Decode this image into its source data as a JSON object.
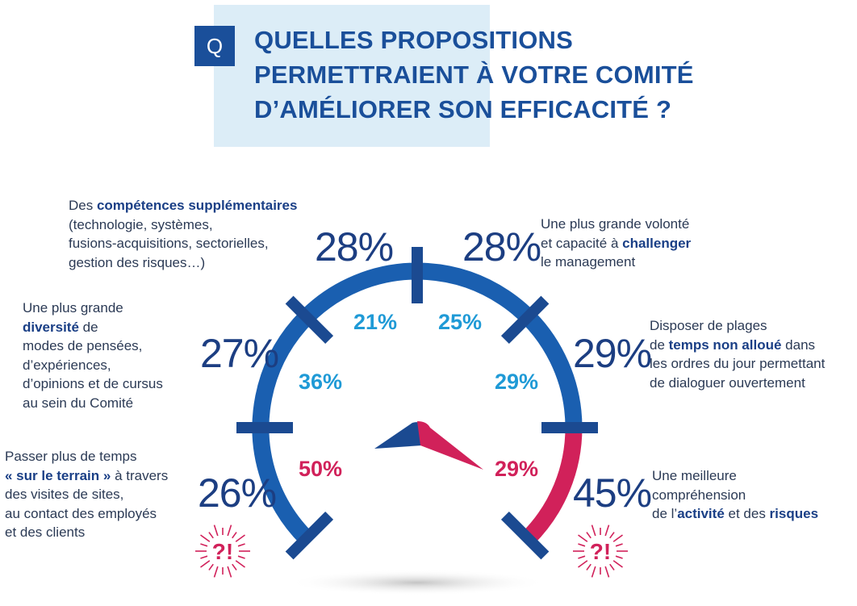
{
  "header": {
    "badge": "Q",
    "title_lines": [
      "QUELLES PROPOSITIONS",
      "PERMETTRAIENT À VOTRE COMITÉ",
      "D’AMÉLIORER SON EFFICACITÉ ?"
    ]
  },
  "chart_data": {
    "type": "gauge",
    "title": "QUELLES PROPOSITIONS PERMETTRAIENT À VOTRE COMITÉ D’AMÉLIORER SON EFFICACITÉ ?",
    "needle_value_pct": 29,
    "proposals": [
      {
        "id": "terrain",
        "outer_value": "26%",
        "inner_value": "50%",
        "inner_color": "red",
        "highlight": true,
        "label_parts": [
          {
            "t": "Passer plus de temps",
            "b": false,
            "br": true
          },
          {
            "t": "« sur le terrain »",
            "b": true
          },
          {
            "t": " à travers",
            "b": false,
            "br": true
          },
          {
            "t": "des visites de sites,",
            "b": false,
            "br": true
          },
          {
            "t": "au contact des employés",
            "b": false,
            "br": true
          },
          {
            "t": "et des clients",
            "b": false
          }
        ]
      },
      {
        "id": "diversite",
        "outer_value": "27%",
        "inner_value": "36%",
        "inner_color": "blue",
        "highlight": false,
        "label_parts": [
          {
            "t": "Une plus grande",
            "b": false,
            "br": true
          },
          {
            "t": "diversité",
            "b": true
          },
          {
            "t": " de",
            "b": false,
            "br": true
          },
          {
            "t": "modes de pensées,",
            "b": false,
            "br": true
          },
          {
            "t": "d’expériences,",
            "b": false,
            "br": true
          },
          {
            "t": "d’opinions et de cursus",
            "b": false,
            "br": true
          },
          {
            "t": "au sein du Comité",
            "b": false
          }
        ]
      },
      {
        "id": "competences",
        "outer_value": "28%",
        "inner_value": "21%",
        "inner_color": "blue",
        "highlight": false,
        "label_parts": [
          {
            "t": "Des ",
            "b": false
          },
          {
            "t": "compétences supplémentaires",
            "b": true,
            "br": true
          },
          {
            "t": "(technologie, systèmes,",
            "b": false,
            "br": true
          },
          {
            "t": "fusions-acquisitions, sectorielles,",
            "b": false,
            "br": true
          },
          {
            "t": "gestion des risques…)",
            "b": false
          }
        ]
      },
      {
        "id": "challenger",
        "outer_value": "28%",
        "inner_value": "25%",
        "inner_color": "blue",
        "highlight": false,
        "label_parts": [
          {
            "t": "Une plus grande volonté",
            "b": false,
            "br": true
          },
          {
            "t": "et capacité à ",
            "b": false
          },
          {
            "t": "challenger",
            "b": true,
            "br": true
          },
          {
            "t": "le management",
            "b": false
          }
        ]
      },
      {
        "id": "temps",
        "outer_value": "29%",
        "inner_value": "29%",
        "inner_color": "blue",
        "highlight": false,
        "label_parts": [
          {
            "t": "Disposer de plages",
            "b": false,
            "br": true
          },
          {
            "t": "de ",
            "b": false
          },
          {
            "t": "temps non alloué",
            "b": true
          },
          {
            "t": " dans",
            "b": false,
            "br": true
          },
          {
            "t": "les ordres du jour permettant",
            "b": false,
            "br": true
          },
          {
            "t": "de dialoguer ouvertement",
            "b": false
          }
        ]
      },
      {
        "id": "activite",
        "outer_value": "45%",
        "inner_value": "29%",
        "inner_color": "red",
        "highlight": true,
        "label_parts": [
          {
            "t": "Une meilleure",
            "b": false,
            "br": true
          },
          {
            "t": "compréhension",
            "b": false,
            "br": true
          },
          {
            "t": "de l’",
            "b": false
          },
          {
            "t": "activité",
            "b": true
          },
          {
            "t": " et des ",
            "b": false
          },
          {
            "t": "risques",
            "b": true
          }
        ]
      }
    ],
    "alert_symbol": "?!"
  },
  "colors": {
    "arc_blue": "#1a5fb0",
    "tick_blue": "#1b4a91",
    "arc_red": "#d1215a",
    "inner_blue": "#1f9ad6",
    "title_blue": "#1a4f9a"
  }
}
